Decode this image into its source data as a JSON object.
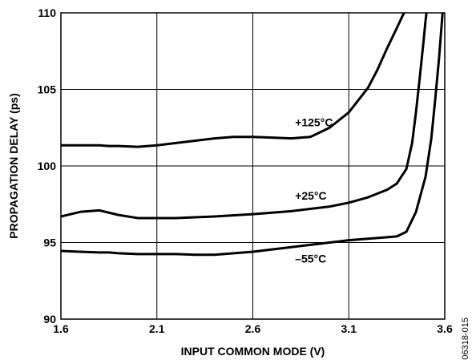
{
  "chart_data": {
    "type": "line",
    "title": "",
    "xlabel": "INPUT COMMON MODE (V)",
    "ylabel": "PROPAGATION DELAY (ps)",
    "xlim": [
      1.6,
      3.6
    ],
    "ylim": [
      90,
      110
    ],
    "xticks": [
      1.6,
      2.1,
      2.6,
      3.1,
      3.6
    ],
    "yticks": [
      90,
      95,
      100,
      105,
      110
    ],
    "xtick_labels": [
      "1.6",
      "2.1",
      "2.6",
      "3.1",
      "3.6"
    ],
    "ytick_labels": [
      "90",
      "95",
      "100",
      "105",
      "110"
    ],
    "grid": true,
    "series": [
      {
        "name": "+125°C",
        "x": [
          1.6,
          1.7,
          1.8,
          1.85,
          1.9,
          2.0,
          2.1,
          2.2,
          2.3,
          2.4,
          2.5,
          2.6,
          2.7,
          2.8,
          2.9,
          3.0,
          3.1,
          3.2,
          3.25,
          3.3,
          3.35,
          3.38,
          3.4,
          3.42,
          3.44
        ],
        "values": [
          101.35,
          101.35,
          101.35,
          101.3,
          101.3,
          101.25,
          101.35,
          101.5,
          101.65,
          101.8,
          101.9,
          101.9,
          101.85,
          101.8,
          101.9,
          102.5,
          103.5,
          105.1,
          106.3,
          107.7,
          109.0,
          109.8,
          110.3,
          110.8,
          111.2
        ],
        "label_x": 2.82,
        "label_y": 102.6
      },
      {
        "name": "+25°C",
        "x": [
          1.6,
          1.7,
          1.8,
          1.85,
          1.9,
          2.0,
          2.2,
          2.4,
          2.6,
          2.8,
          3.0,
          3.1,
          3.2,
          3.3,
          3.35,
          3.4,
          3.43,
          3.45,
          3.47,
          3.49,
          3.5,
          3.51
        ],
        "values": [
          96.7,
          97.0,
          97.1,
          96.95,
          96.8,
          96.6,
          96.6,
          96.7,
          96.85,
          97.05,
          97.35,
          97.6,
          97.95,
          98.45,
          98.85,
          99.8,
          101.5,
          103.5,
          105.8,
          108.2,
          109.5,
          110.5
        ],
        "label_x": 2.82,
        "label_y": 97.8
      },
      {
        "name": "–55°C",
        "x": [
          1.6,
          1.7,
          1.8,
          1.85,
          1.9,
          2.0,
          2.1,
          2.2,
          2.3,
          2.4,
          2.5,
          2.6,
          2.7,
          2.8,
          2.9,
          3.0,
          3.1,
          3.2,
          3.3,
          3.35,
          3.4,
          3.45,
          3.5,
          3.53,
          3.55,
          3.57,
          3.58,
          3.59
        ],
        "values": [
          94.45,
          94.4,
          94.35,
          94.35,
          94.3,
          94.25,
          94.25,
          94.25,
          94.2,
          94.2,
          94.3,
          94.4,
          94.55,
          94.7,
          94.85,
          95.0,
          95.15,
          95.25,
          95.35,
          95.4,
          95.7,
          97.0,
          99.3,
          101.8,
          104.3,
          107.0,
          108.6,
          110.2
        ],
        "label_x": 2.82,
        "label_y": 93.7
      }
    ],
    "figure_id": "06318-015"
  }
}
